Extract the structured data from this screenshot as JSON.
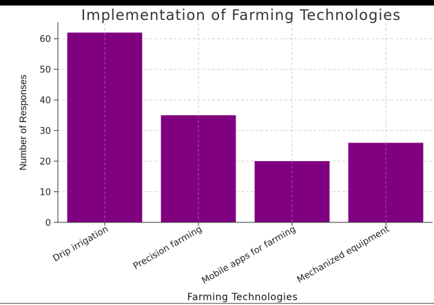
{
  "chart_data": {
    "type": "bar",
    "title": "Implementation of Farming Technologies",
    "xlabel": "Farming Technologies",
    "ylabel": "Number of Responses",
    "categories": [
      "Drip irrigation",
      "Precision farming",
      "Mobile apps for farming",
      "Mechanized equipment"
    ],
    "values": [
      62,
      35,
      20,
      26
    ],
    "ylim": [
      0,
      65
    ],
    "yticks": [
      0,
      10,
      20,
      30,
      40,
      50,
      60
    ],
    "grid": true,
    "bar_color": "#800080"
  }
}
